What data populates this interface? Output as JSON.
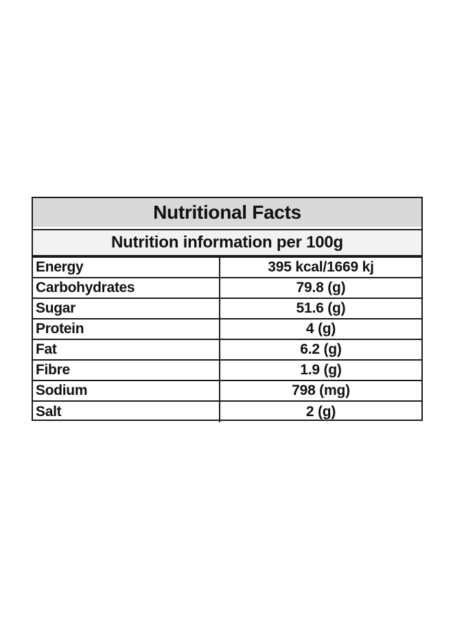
{
  "table": {
    "title": "Nutritional Facts",
    "subtitle": "Nutrition information per 100g",
    "rows": [
      {
        "name": "Energy",
        "value": "395 kcal/1669 kj"
      },
      {
        "name": "Carbohydrates",
        "value": "79.8 (g)"
      },
      {
        "name": "Sugar",
        "value": "51.6 (g)"
      },
      {
        "name": "Protein",
        "value": "4 (g)"
      },
      {
        "name": "Fat",
        "value": "6.2 (g)"
      },
      {
        "name": "Fibre",
        "value": "1.9 (g)"
      },
      {
        "name": "Sodium",
        "value": "798 (mg)"
      },
      {
        "name": "Salt",
        "value": "2 (g)"
      }
    ]
  }
}
